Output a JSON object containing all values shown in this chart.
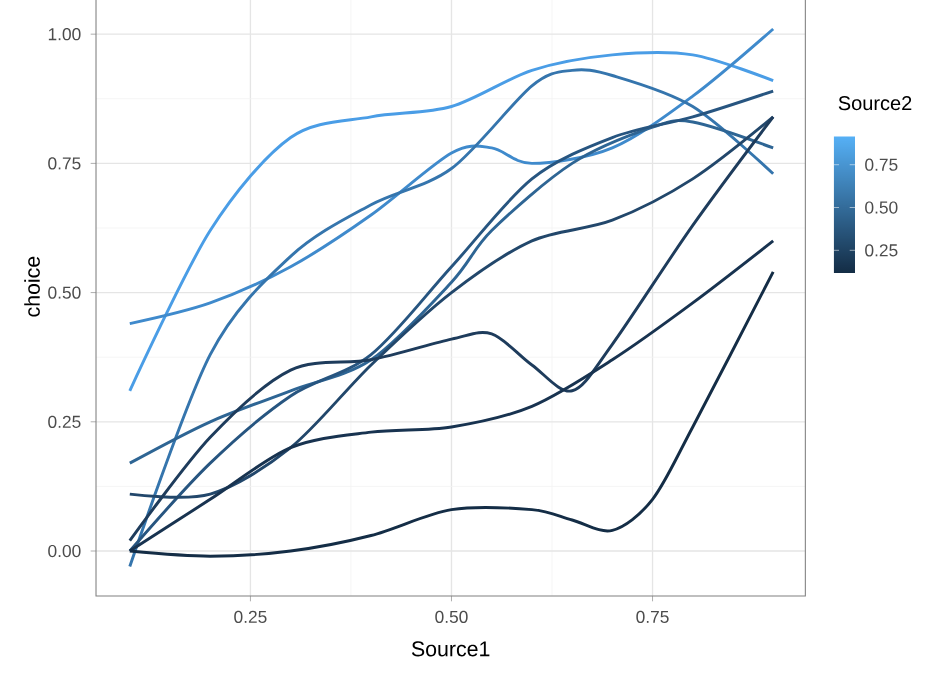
{
  "chart_data": {
    "type": "line",
    "xlabel": "Source1",
    "ylabel": "choice",
    "clabel": "Source2",
    "xlim": [
      0.058,
      0.94
    ],
    "xticks": [
      {
        "value": 0.25,
        "label": "0.25"
      },
      {
        "value": 0.5,
        "label": "0.50"
      },
      {
        "value": 0.75,
        "label": "0.75"
      }
    ],
    "ylim": [
      -0.087,
      1.11
    ],
    "yticks": [
      {
        "value": 0,
        "label": "0.00"
      },
      {
        "value": 0.25,
        "label": "0.25"
      },
      {
        "value": 0.5,
        "label": "0.50"
      },
      {
        "value": 0.75,
        "label": "0.75"
      },
      {
        "value": 1,
        "label": "1.00"
      }
    ],
    "clim": [
      0.11,
      0.92
    ],
    "cticks": [
      {
        "value": 0.25,
        "label": "0.25"
      },
      {
        "value": 0.5,
        "label": "0.50"
      },
      {
        "value": 0.75,
        "label": "0.75"
      }
    ],
    "grid": true,
    "line_style": "solid",
    "marker": "none",
    "series": [
      {
        "color": "#4a9de6",
        "x": [
          0.1,
          0.2,
          0.3,
          0.4,
          0.5,
          0.6,
          0.7,
          0.8,
          0.9
        ],
        "values": [
          0.31,
          0.62,
          0.8,
          0.84,
          0.86,
          0.93,
          0.96,
          0.96,
          0.91
        ]
      },
      {
        "color": "#3f8acc",
        "x": [
          0.1,
          0.2,
          0.3,
          0.4,
          0.5,
          0.55,
          0.6,
          0.7,
          0.8,
          0.9
        ],
        "values": [
          0.44,
          0.48,
          0.55,
          0.65,
          0.77,
          0.78,
          0.75,
          0.78,
          0.88,
          1.01
        ]
      },
      {
        "color": "#3575ad",
        "x": [
          0.1,
          0.2,
          0.3,
          0.4,
          0.5,
          0.6,
          0.65,
          0.7,
          0.8,
          0.9
        ],
        "values": [
          -0.03,
          0.38,
          0.57,
          0.67,
          0.74,
          0.9,
          0.93,
          0.92,
          0.86,
          0.73
        ]
      },
      {
        "color": "#2e6594",
        "x": [
          0.1,
          0.2,
          0.3,
          0.4,
          0.5,
          0.55,
          0.65,
          0.75,
          0.8,
          0.9
        ],
        "values": [
          0.17,
          0.25,
          0.31,
          0.37,
          0.52,
          0.62,
          0.75,
          0.82,
          0.83,
          0.78
        ]
      },
      {
        "color": "#275580",
        "x": [
          0.1,
          0.2,
          0.3,
          0.4,
          0.5,
          0.6,
          0.7,
          0.8,
          0.9
        ],
        "values": [
          0.0,
          0.17,
          0.3,
          0.38,
          0.55,
          0.72,
          0.8,
          0.84,
          0.89
        ]
      },
      {
        "color": "#22476b",
        "x": [
          0.1,
          0.2,
          0.3,
          0.4,
          0.5,
          0.6,
          0.7,
          0.8,
          0.9
        ],
        "values": [
          0.11,
          0.11,
          0.2,
          0.36,
          0.5,
          0.6,
          0.64,
          0.72,
          0.84
        ]
      },
      {
        "color": "#1e3c5c",
        "x": [
          0.1,
          0.2,
          0.3,
          0.4,
          0.5,
          0.55,
          0.6,
          0.65,
          0.7,
          0.8,
          0.9
        ],
        "values": [
          0.02,
          0.22,
          0.35,
          0.37,
          0.41,
          0.42,
          0.36,
          0.31,
          0.4,
          0.63,
          0.84
        ]
      },
      {
        "color": "#183350",
        "x": [
          0.1,
          0.2,
          0.3,
          0.4,
          0.5,
          0.6,
          0.7,
          0.8,
          0.9
        ],
        "values": [
          0.0,
          0.1,
          0.2,
          0.23,
          0.24,
          0.28,
          0.37,
          0.48,
          0.6
        ]
      },
      {
        "color": "#142d46",
        "x": [
          0.1,
          0.2,
          0.3,
          0.4,
          0.5,
          0.6,
          0.65,
          0.7,
          0.75,
          0.8,
          0.9
        ],
        "values": [
          0.0,
          -0.01,
          0.0,
          0.03,
          0.08,
          0.08,
          0.06,
          0.04,
          0.1,
          0.24,
          0.54
        ]
      }
    ]
  }
}
